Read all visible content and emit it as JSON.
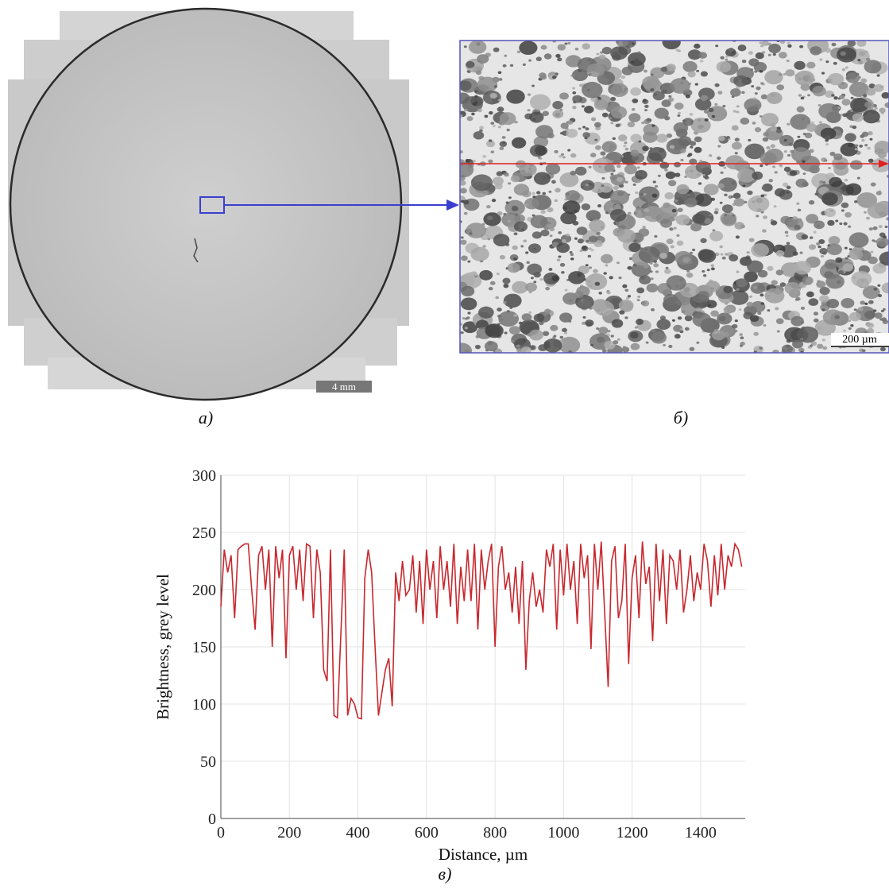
{
  "figure": {
    "panel_labels": [
      "а)",
      "б)",
      "в)"
    ],
    "scale_bars": [
      "4 mm",
      "200 µm"
    ]
  },
  "chart_data": {
    "type": "line",
    "x_label": "Distance, µm",
    "y_label": "Brightness, grey level",
    "x": [
      0,
      10,
      20,
      30,
      40,
      50,
      60,
      70,
      80,
      90,
      100,
      110,
      120,
      130,
      140,
      150,
      160,
      170,
      180,
      190,
      200,
      210,
      220,
      230,
      240,
      250,
      260,
      270,
      280,
      290,
      300,
      310,
      320,
      330,
      340,
      350,
      360,
      370,
      380,
      390,
      400,
      410,
      420,
      430,
      440,
      450,
      460,
      470,
      480,
      490,
      500,
      510,
      520,
      530,
      540,
      550,
      560,
      570,
      580,
      590,
      600,
      610,
      620,
      630,
      640,
      650,
      660,
      670,
      680,
      690,
      700,
      710,
      720,
      730,
      740,
      750,
      760,
      770,
      780,
      790,
      800,
      810,
      820,
      830,
      840,
      850,
      860,
      870,
      880,
      890,
      900,
      910,
      920,
      930,
      940,
      950,
      960,
      970,
      980,
      990,
      1000,
      1010,
      1020,
      1030,
      1040,
      1050,
      1060,
      1070,
      1080,
      1090,
      1100,
      1110,
      1120,
      1130,
      1140,
      1150,
      1160,
      1170,
      1180,
      1190,
      1200,
      1210,
      1220,
      1230,
      1240,
      1250,
      1260,
      1270,
      1280,
      1290,
      1300,
      1310,
      1320,
      1330,
      1340,
      1350,
      1360,
      1370,
      1380,
      1390,
      1400,
      1410,
      1420,
      1430,
      1440,
      1450,
      1460,
      1470,
      1480,
      1490,
      1500,
      1510,
      1520
    ],
    "series": [
      {
        "color": "#c8282e",
        "values": [
          185,
          235,
          215,
          230,
          175,
          235,
          238,
          240,
          240,
          200,
          165,
          230,
          238,
          200,
          235,
          150,
          238,
          210,
          235,
          140,
          230,
          238,
          200,
          235,
          190,
          240,
          238,
          175,
          235,
          215,
          130,
          120,
          235,
          90,
          88,
          160,
          235,
          90,
          105,
          100,
          88,
          87,
          210,
          235,
          215,
          150,
          90,
          110,
          130,
          140,
          98,
          215,
          190,
          225,
          195,
          200,
          230,
          180,
          225,
          170,
          235,
          200,
          225,
          175,
          238,
          200,
          225,
          185,
          240,
          170,
          220,
          190,
          235,
          190,
          240,
          165,
          235,
          200,
          225,
          240,
          150,
          220,
          238,
          200,
          215,
          180,
          220,
          170,
          225,
          130,
          190,
          215,
          185,
          200,
          180,
          235,
          220,
          240,
          165,
          235,
          195,
          240,
          200,
          225,
          170,
          240,
          210,
          230,
          148,
          240,
          200,
          242,
          180,
          115,
          225,
          238,
          175,
          190,
          240,
          135,
          210,
          230,
          175,
          242,
          205,
          220,
          155,
          240,
          190,
          235,
          170,
          230,
          225,
          200,
          235,
          180,
          200,
          230,
          190,
          215,
          200,
          240,
          225,
          185,
          230,
          195,
          240,
          200,
          230,
          220,
          240,
          235,
          220
        ]
      }
    ],
    "xlim": [
      0,
      1530
    ],
    "ylim": [
      0,
      300
    ],
    "xticks": [
      0,
      200,
      400,
      600,
      800,
      1000,
      1200,
      1400
    ],
    "yticks": [
      0,
      50,
      100,
      150,
      200,
      250,
      300
    ],
    "grid": true
  }
}
